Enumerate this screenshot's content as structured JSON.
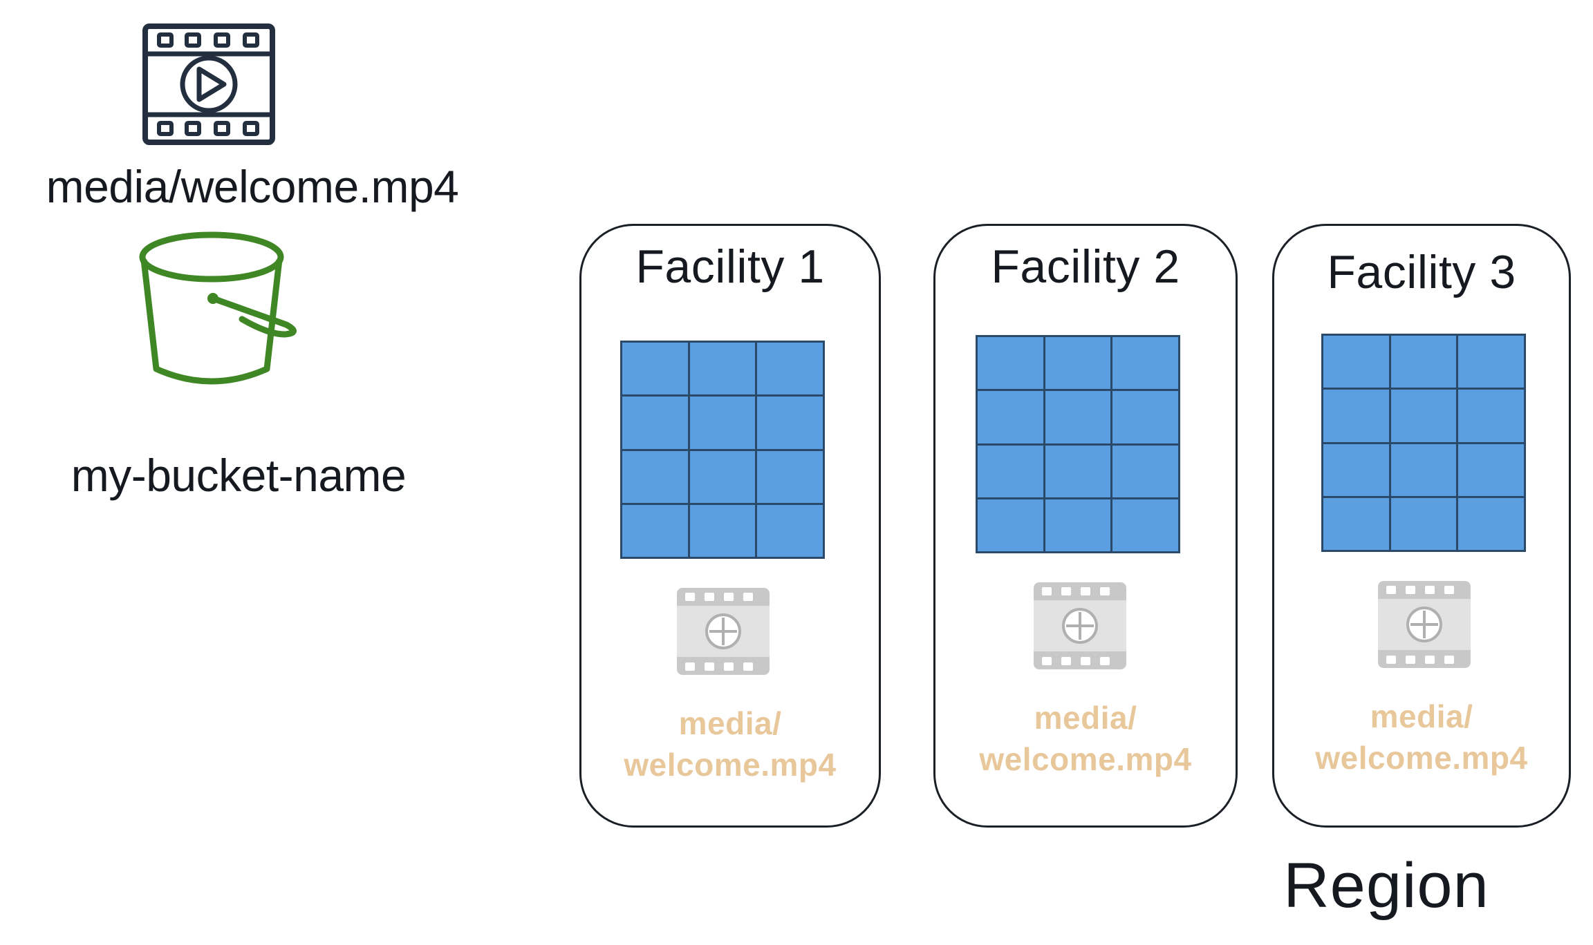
{
  "source_object": {
    "icon": "video-file-icon",
    "key": "media/welcome.mp4"
  },
  "bucket": {
    "icon": "bucket-icon",
    "name": "my-bucket-name",
    "color": "#3f8624"
  },
  "facilities": [
    {
      "title": "Facility 1",
      "replica_line1": "media/",
      "replica_line2": "welcome.mp4"
    },
    {
      "title": "Facility 2",
      "replica_line1": "media/",
      "replica_line2": "welcome.mp4"
    },
    {
      "title": "Facility 3",
      "replica_line1": "media/",
      "replica_line2": "welcome.mp4"
    }
  ],
  "colors": {
    "storage_grid": "#5b9fe0",
    "replica_text": "#e8c79a",
    "replica_icon": "#c4c4c4"
  },
  "region": {
    "label": "Region"
  }
}
